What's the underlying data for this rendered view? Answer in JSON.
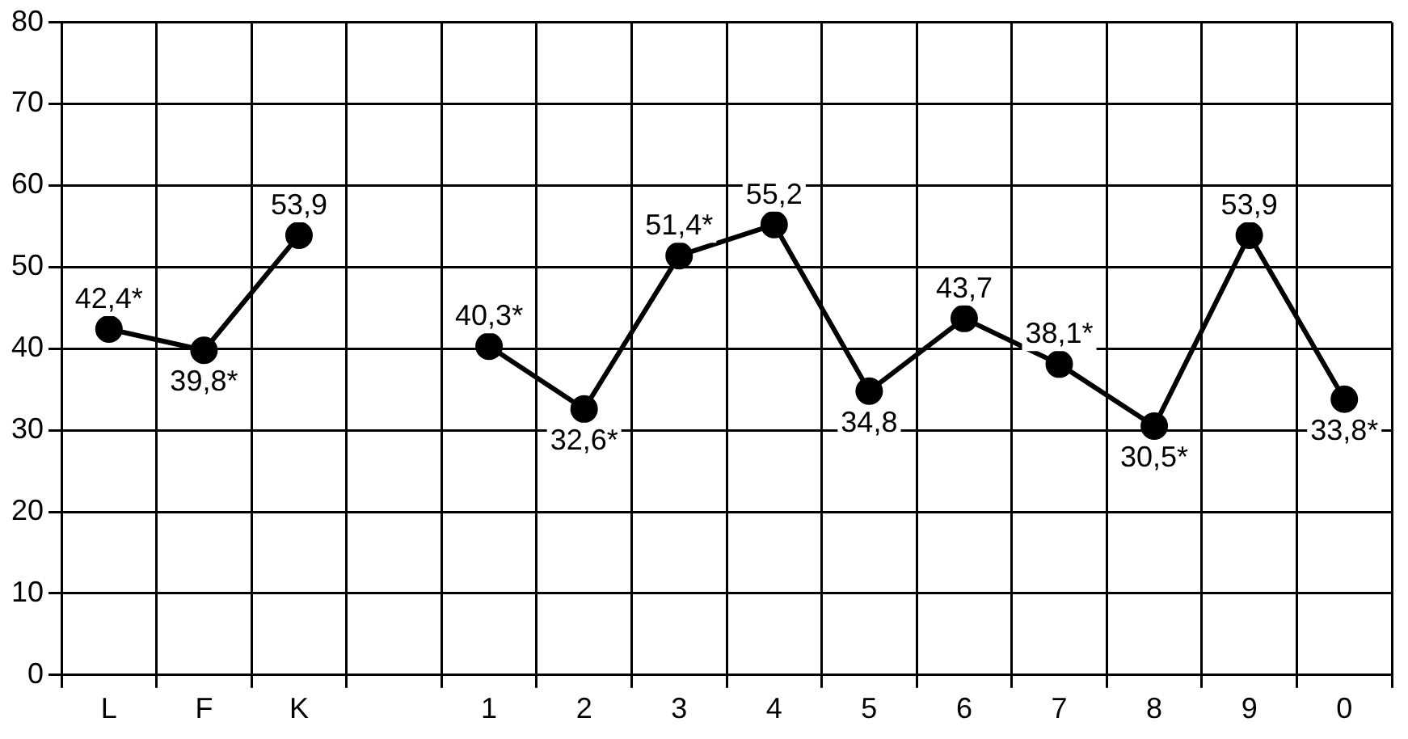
{
  "chart_data": {
    "type": "line",
    "categories": [
      "L",
      "F",
      "K",
      null,
      "1",
      "2",
      "3",
      "4",
      "5",
      "6",
      "7",
      "8",
      "9",
      "0"
    ],
    "series": [
      {
        "color": "#000000",
        "values": [
          42.4,
          39.8,
          53.9,
          null,
          40.3,
          32.6,
          51.4,
          55.2,
          34.8,
          43.7,
          38.1,
          30.5,
          53.9,
          33.8
        ],
        "value_labels": [
          "42,4*",
          "39,8*",
          "53,9",
          null,
          "40,3*",
          "32,6*",
          "51,4*",
          "55,2",
          "34,8",
          "43,7",
          "38,1*",
          "30,5*",
          "53,9",
          "33,8*"
        ]
      }
    ],
    "ylim": [
      0,
      80
    ],
    "yticks": [
      0,
      10,
      20,
      30,
      40,
      50,
      60,
      70,
      80
    ],
    "grid": true,
    "marker": "circle",
    "line_style": "solid"
  }
}
